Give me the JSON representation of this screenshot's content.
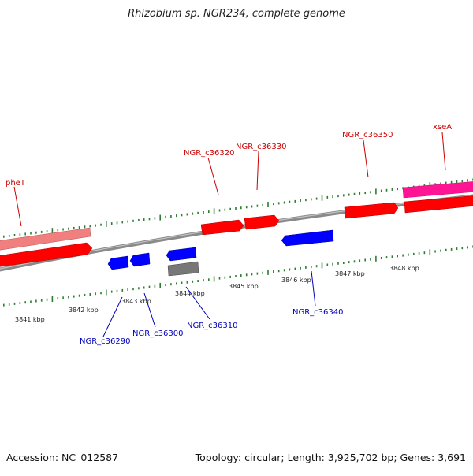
{
  "title": "Rhizobium sp. NGR234, complete genome",
  "footer": {
    "accession": "Accession: NC_012587",
    "summary": "Topology: circular; Length: 3,925,702 bp; Genes: 3,691"
  },
  "colors": {
    "forward_gene": "#ff0000",
    "reverse_gene": "#0000ff",
    "rna_gene": "#ff1493",
    "other_feature": "#777777",
    "forward_label": "#cc0000",
    "reverse_label": "#0000bb",
    "tick": "#2e7d32",
    "backbone": "#888888"
  },
  "tick_labels": [
    "3841 kbp",
    "3842 kbp",
    "3843 kbp",
    "3844 kbp",
    "3845 kbp",
    "3846 kbp",
    "3847 kbp",
    "3848 kbp"
  ],
  "labels": {
    "forward": [
      "pheT",
      "NGR_c36320",
      "NGR_c36330",
      "NGR_c36350",
      "xseA"
    ],
    "reverse": [
      "NGR_c36290",
      "NGR_c36300",
      "NGR_c36310",
      "NGR_c36340"
    ]
  }
}
